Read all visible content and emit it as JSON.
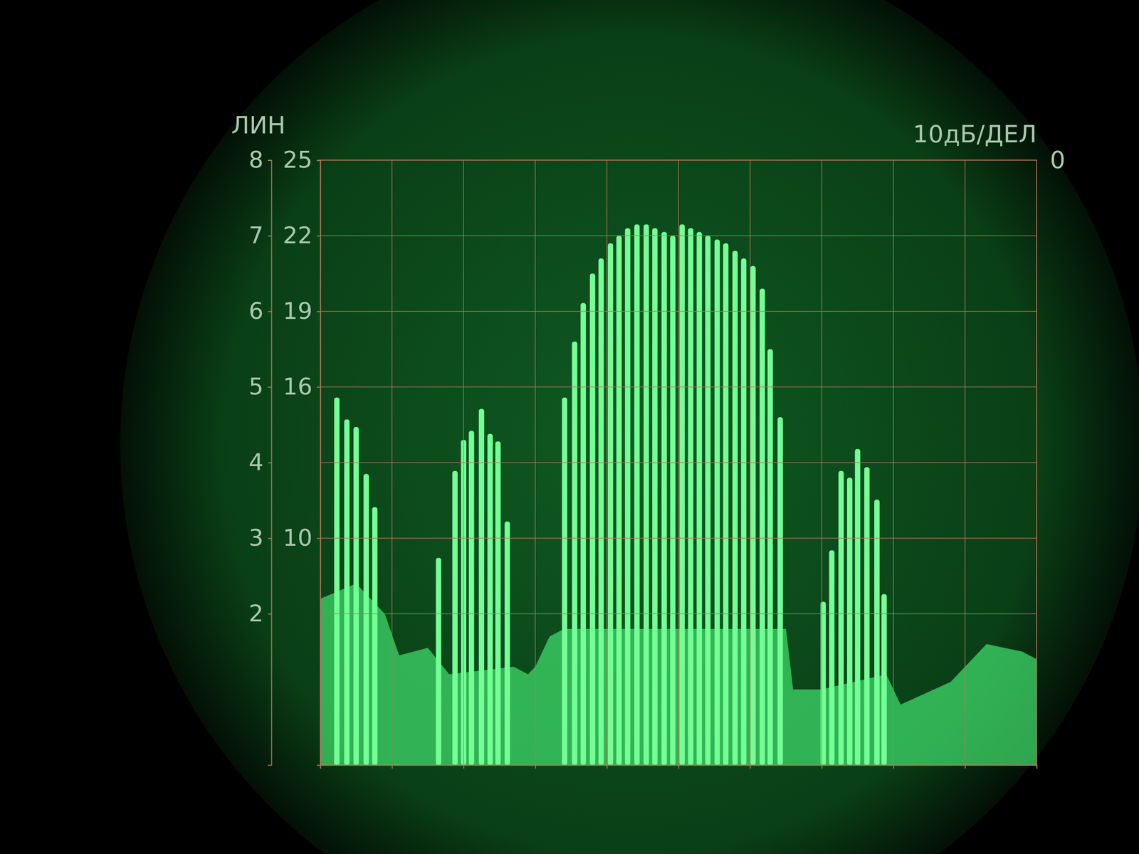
{
  "chart_data": {
    "type": "bar",
    "annotations": [
      "ЛИН",
      "10дБ/ДЕЛ",
      "0"
    ],
    "series": [
      {
        "type": "bar",
        "color": "#74ff96",
        "x": [
          0.23,
          0.37,
          0.5,
          0.64,
          0.76,
          1.65,
          1.88,
          2.0,
          2.11,
          2.25,
          2.37,
          2.48,
          2.61,
          3.41,
          3.55,
          3.67,
          3.8,
          3.92,
          4.05,
          4.17,
          4.29,
          4.42,
          4.55,
          4.67,
          4.8,
          4.92,
          5.05,
          5.17,
          5.29,
          5.41,
          5.54,
          5.66,
          5.79,
          5.91,
          6.04,
          6.17,
          6.28,
          6.42,
          7.02,
          7.14,
          7.27,
          7.39,
          7.5,
          7.63,
          7.77,
          7.87
        ],
        "values": [
          4.86,
          4.57,
          4.47,
          3.85,
          3.41,
          2.74,
          3.89,
          4.3,
          4.42,
          4.71,
          4.38,
          4.28,
          3.22,
          4.86,
          5.6,
          6.11,
          6.5,
          6.7,
          6.9,
          7.0,
          7.1,
          7.15,
          7.15,
          7.1,
          7.05,
          7.0,
          7.15,
          7.1,
          7.05,
          7.0,
          6.95,
          6.9,
          6.8,
          6.7,
          6.6,
          6.3,
          5.5,
          4.6,
          2.16,
          2.84,
          3.89,
          3.8,
          4.18,
          3.94,
          3.51,
          2.26
        ]
      },
      {
        "type": "area",
        "color": "#3fd86a",
        "x": [
          0,
          0.5,
          0.9,
          1.1,
          1.5,
          1.8,
          2.7,
          2.9,
          3.0,
          3.2,
          3.4,
          6.5,
          6.6,
          7.0,
          7.9,
          8.1,
          8.8,
          9.3,
          9.8,
          10
        ],
        "values": [
          2.2,
          2.4,
          2.0,
          1.45,
          1.55,
          1.2,
          1.3,
          1.2,
          1.3,
          1.7,
          1.8,
          1.8,
          1.0,
          1.0,
          1.2,
          0.8,
          1.1,
          1.6,
          1.5,
          1.4
        ]
      }
    ],
    "xlim": [
      0,
      10
    ],
    "xticks": [
      0,
      1,
      2,
      3,
      4,
      5,
      6,
      7,
      8,
      9,
      10
    ],
    "ylim": [
      0,
      8
    ],
    "yticks": [
      2,
      3,
      4,
      5,
      6,
      7,
      8
    ],
    "y2lim": [
      1,
      25
    ],
    "y2ticks": [
      10,
      16,
      19,
      22,
      25
    ],
    "grid": true,
    "tick_labels": "y"
  }
}
